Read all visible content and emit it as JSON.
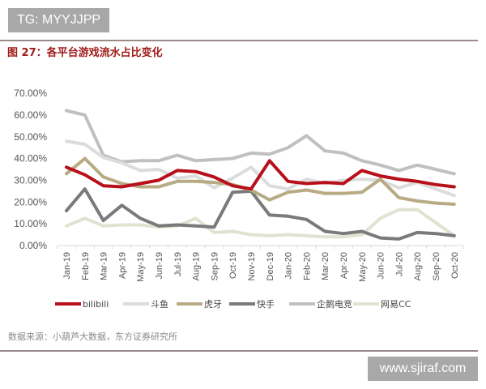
{
  "watermark_top": "TG: MYYJJPP",
  "watermark_bottom": "www.sjiraf.com",
  "figure": {
    "title": "图 27：各平台游戏流水占比变化",
    "source": "数据来源：小葫芦大数据，东方证券研究所"
  },
  "chart_data": {
    "type": "line",
    "title": "图 27：各平台游戏流水占比变化",
    "xlabel": "",
    "ylabel": "",
    "ylim": [
      0,
      0.7
    ],
    "yticks": [
      "0.00%",
      "10.00%",
      "20.00%",
      "30.00%",
      "40.00%",
      "50.00%",
      "60.00%",
      "70.00%"
    ],
    "grid": false,
    "legend_position": "bottom",
    "categories": [
      "Jan-19",
      "Feb-19",
      "Mar-19",
      "Apr-19",
      "May-19",
      "Jun-19",
      "Jul-19",
      "Aug-19",
      "Sep-19",
      "Oct-19",
      "Nov-19",
      "Dec-19",
      "Jan-20",
      "Feb-20",
      "Mar-20",
      "Apr-20",
      "May-20",
      "Jun-20",
      "Jul-20",
      "Aug-20",
      "Sep-20",
      "Oct-20"
    ],
    "series": [
      {
        "name": "企鹅电竞",
        "color": "#c0c0c0",
        "width": 4,
        "values": [
          62,
          60,
          41.5,
          38.5,
          39,
          39,
          41.5,
          39,
          39.5,
          40,
          42.5,
          42,
          45,
          50.5,
          43.5,
          42.5,
          39,
          37,
          34.5,
          37,
          35,
          33
        ]
      },
      {
        "name": "斗鱼",
        "color": "#dcdcdc",
        "width": 4,
        "values": [
          48,
          46.5,
          40.5,
          38,
          34.5,
          35,
          31,
          32,
          26.5,
          31,
          36,
          27.5,
          26,
          30.5,
          28.5,
          30,
          30.5,
          30,
          26.5,
          29,
          26,
          23
        ]
      },
      {
        "name": "网易CC",
        "color": "#e2e2d2",
        "width": 4,
        "values": [
          9,
          12.5,
          9,
          9.5,
          9.5,
          8.5,
          9,
          12.5,
          6,
          6.5,
          5,
          4.5,
          5,
          4.5,
          4,
          4,
          5,
          12.5,
          16.5,
          16.5,
          10.5,
          4.5
        ]
      },
      {
        "name": "快手",
        "color": "#7a7a7a",
        "width": 4,
        "values": [
          16,
          26,
          11.5,
          18.5,
          12.5,
          9,
          9.5,
          9,
          8.5,
          24.5,
          25,
          14,
          13.5,
          12,
          6.5,
          5.5,
          6.5,
          3.5,
          3,
          6,
          5.5,
          4.5
        ]
      },
      {
        "name": "虎牙",
        "color": "#b8ab84",
        "width": 4,
        "values": [
          33,
          40,
          31.5,
          28.5,
          27,
          27,
          29.5,
          29.5,
          29,
          28,
          25.5,
          21,
          24.5,
          25.5,
          24,
          24,
          24.5,
          30.5,
          22,
          20.5,
          19.5,
          19
        ]
      },
      {
        "name": "bilibili",
        "color": "#b8101a",
        "width": 4,
        "values": [
          36,
          32.5,
          27.5,
          27,
          28.5,
          30,
          34.5,
          34,
          31.5,
          27.5,
          26,
          39,
          29.5,
          28.5,
          29,
          28.5,
          34.5,
          32,
          30.5,
          29.5,
          28,
          27
        ]
      }
    ],
    "legend": [
      {
        "name": "bilibili",
        "color": "#b8101a"
      },
      {
        "name": "斗鱼",
        "color": "#dcdcdc"
      },
      {
        "name": "虎牙",
        "color": "#b8ab84"
      },
      {
        "name": "快手",
        "color": "#7a7a7a"
      },
      {
        "name": "企鹅电竞",
        "color": "#c0c0c0"
      },
      {
        "name": "网易CC",
        "color": "#e2e2d2"
      }
    ]
  }
}
